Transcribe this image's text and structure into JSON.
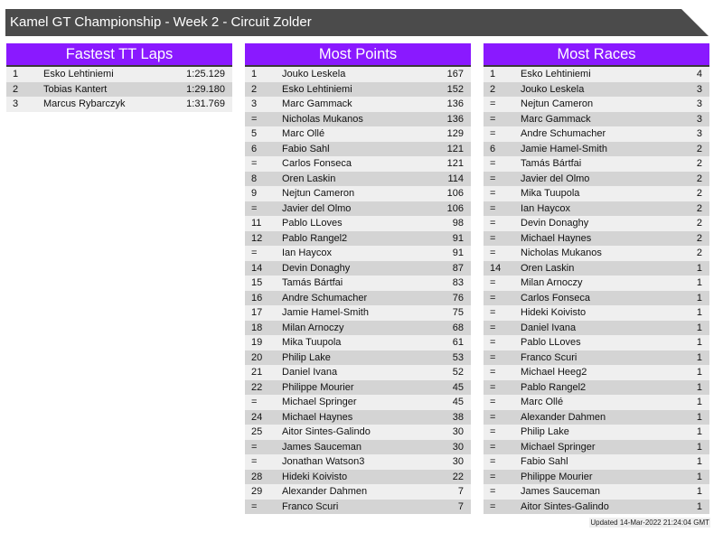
{
  "title": "Kamel GT Championship - Week 2 - Circuit Zolder",
  "colors": {
    "header_bg": "#8a19ff",
    "title_bg": "#4b4b4b",
    "row_light": "#efefef",
    "row_dark": "#d4d4d4"
  },
  "tables": [
    {
      "title": "Fastest TT Laps",
      "rows": [
        [
          "1",
          "Esko Lehtiniemi",
          "1:25.129"
        ],
        [
          "2",
          "Tobias Kantert",
          "1:29.180"
        ],
        [
          "3",
          "Marcus Rybarczyk",
          "1:31.769"
        ]
      ]
    },
    {
      "title": "Most Points",
      "rows": [
        [
          "1",
          "Jouko Leskela",
          "167"
        ],
        [
          "2",
          "Esko Lehtiniemi",
          "152"
        ],
        [
          "3",
          "Marc Gammack",
          "136"
        ],
        [
          "=",
          "Nicholas Mukanos",
          "136"
        ],
        [
          "5",
          "Marc Ollé",
          "129"
        ],
        [
          "6",
          "Fabio Sahl",
          "121"
        ],
        [
          "=",
          "Carlos Fonseca",
          "121"
        ],
        [
          "8",
          "Oren Laskin",
          "114"
        ],
        [
          "9",
          "Nejtun Cameron",
          "106"
        ],
        [
          "=",
          "Javier del Olmo",
          "106"
        ],
        [
          "11",
          "Pablo LLoves",
          "98"
        ],
        [
          "12",
          "Pablo Rangel2",
          "91"
        ],
        [
          "=",
          "Ian Haycox",
          "91"
        ],
        [
          "14",
          "Devin Donaghy",
          "87"
        ],
        [
          "15",
          "Tamás Bártfai",
          "83"
        ],
        [
          "16",
          "Andre Schumacher",
          "76"
        ],
        [
          "17",
          "Jamie Hamel-Smith",
          "75"
        ],
        [
          "18",
          "Milan Arnoczy",
          "68"
        ],
        [
          "19",
          "Mika Tuupola",
          "61"
        ],
        [
          "20",
          "Philip Lake",
          "53"
        ],
        [
          "21",
          "Daniel Ivana",
          "52"
        ],
        [
          "22",
          "Philippe Mourier",
          "45"
        ],
        [
          "=",
          "Michael Springer",
          "45"
        ],
        [
          "24",
          "Michael Haynes",
          "38"
        ],
        [
          "25",
          "Aitor Sintes-Galindo",
          "30"
        ],
        [
          "=",
          "James Sauceman",
          "30"
        ],
        [
          "=",
          "Jonathan Watson3",
          "30"
        ],
        [
          "28",
          "Hideki Koivisto",
          "22"
        ],
        [
          "29",
          "Alexander Dahmen",
          "7"
        ],
        [
          "=",
          "Franco Scuri",
          "7"
        ]
      ]
    },
    {
      "title": "Most Races",
      "rows": [
        [
          "1",
          "Esko Lehtiniemi",
          "4"
        ],
        [
          "2",
          "Jouko Leskela",
          "3"
        ],
        [
          "=",
          "Nejtun Cameron",
          "3"
        ],
        [
          "=",
          "Marc Gammack",
          "3"
        ],
        [
          "=",
          "Andre Schumacher",
          "3"
        ],
        [
          "6",
          "Jamie Hamel-Smith",
          "2"
        ],
        [
          "=",
          "Tamás Bártfai",
          "2"
        ],
        [
          "=",
          "Javier del Olmo",
          "2"
        ],
        [
          "=",
          "Mika Tuupola",
          "2"
        ],
        [
          "=",
          "Ian Haycox",
          "2"
        ],
        [
          "=",
          "Devin Donaghy",
          "2"
        ],
        [
          "=",
          "Michael Haynes",
          "2"
        ],
        [
          "=",
          "Nicholas Mukanos",
          "2"
        ],
        [
          "14",
          "Oren Laskin",
          "1"
        ],
        [
          "=",
          "Milan Arnoczy",
          "1"
        ],
        [
          "=",
          "Carlos Fonseca",
          "1"
        ],
        [
          "=",
          "Hideki Koivisto",
          "1"
        ],
        [
          "=",
          "Daniel Ivana",
          "1"
        ],
        [
          "=",
          "Pablo LLoves",
          "1"
        ],
        [
          "=",
          "Franco Scuri",
          "1"
        ],
        [
          "=",
          "Michael Heeg2",
          "1"
        ],
        [
          "=",
          "Pablo Rangel2",
          "1"
        ],
        [
          "=",
          "Marc Ollé",
          "1"
        ],
        [
          "=",
          "Alexander Dahmen",
          "1"
        ],
        [
          "=",
          "Philip Lake",
          "1"
        ],
        [
          "=",
          "Michael Springer",
          "1"
        ],
        [
          "=",
          "Fabio Sahl",
          "1"
        ],
        [
          "=",
          "Philippe Mourier",
          "1"
        ],
        [
          "=",
          "James Sauceman",
          "1"
        ],
        [
          "=",
          "Aitor Sintes-Galindo",
          "1"
        ]
      ]
    }
  ],
  "footer": "Updated 14-Mar-2022 21:24:04 GMT"
}
